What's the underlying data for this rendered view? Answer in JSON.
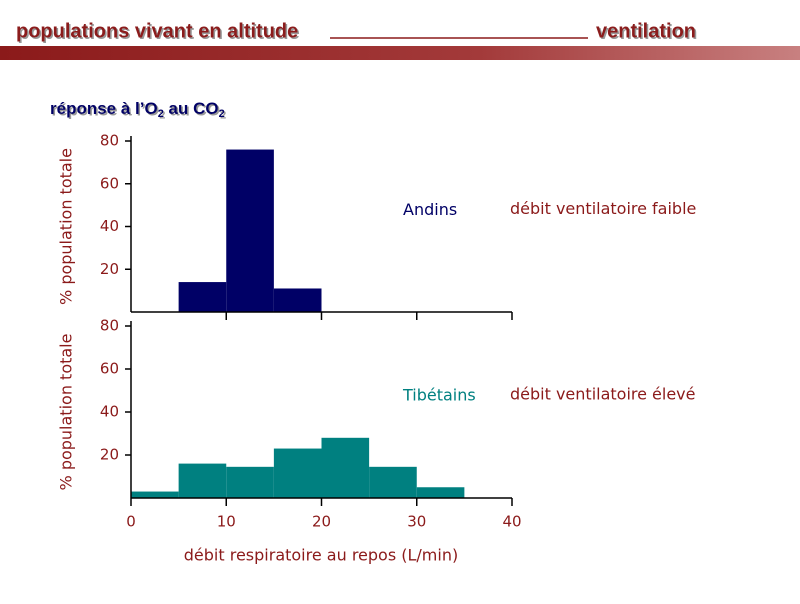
{
  "header": {
    "title": "populations vivant en altitude",
    "section": "ventilation",
    "subtitle": [
      "réponse à l’O",
      "2",
      " au CO",
      "2"
    ]
  },
  "chart_data": [
    {
      "type": "histogram",
      "ylabel": "% population totale",
      "bins": [
        5,
        10,
        15,
        20
      ],
      "series": [
        {
          "name": "Andins",
          "color": "#000066",
          "values": [
            14,
            76,
            11
          ]
        }
      ],
      "annotation": "débit ventilatoire faible",
      "xlim": [
        0,
        40
      ],
      "xticks": [
        10,
        20,
        30,
        40
      ],
      "ylim": [
        0,
        80
      ],
      "yticks": [
        20,
        40,
        60,
        80
      ]
    },
    {
      "type": "histogram",
      "ylabel": "% population totale",
      "xlabel": "débit respiratoire au repos (L/min)",
      "bins": [
        0,
        5,
        10,
        15,
        20,
        25,
        30,
        35
      ],
      "series": [
        {
          "name": "Tibétains",
          "color": "#008080",
          "values": [
            3,
            16,
            14.5,
            23,
            28,
            14.5,
            5
          ]
        }
      ],
      "annotation": "débit ventilatoire élevé",
      "xlim": [
        0,
        40
      ],
      "xticks": [
        0,
        10,
        20,
        30,
        40
      ],
      "ylim": [
        0,
        80
      ],
      "yticks": [
        20,
        40,
        60,
        80
      ]
    }
  ]
}
